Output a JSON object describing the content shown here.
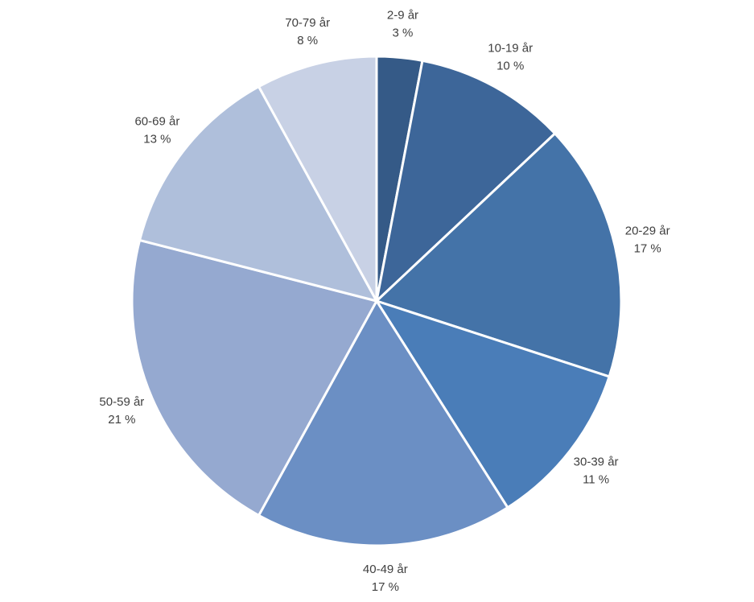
{
  "chart_data": {
    "type": "pie",
    "categories": [
      "2-9 år",
      "10-19 år",
      "20-29 år",
      "30-39 år",
      "40-49 år",
      "50-59 år",
      "60-69 år",
      "70-79 år"
    ],
    "values": [
      3,
      10,
      17,
      11,
      17,
      21,
      13,
      8
    ],
    "value_labels": [
      "3 %",
      "10 %",
      "17 %",
      "11 %",
      "17 %",
      "21 %",
      "13 %",
      "8 %"
    ],
    "colors": [
      "#355a87",
      "#3d6699",
      "#4473a8",
      "#4a7db8",
      "#6b8fc4",
      "#95a9d0",
      "#afbfdb",
      "#c8d1e5"
    ]
  }
}
